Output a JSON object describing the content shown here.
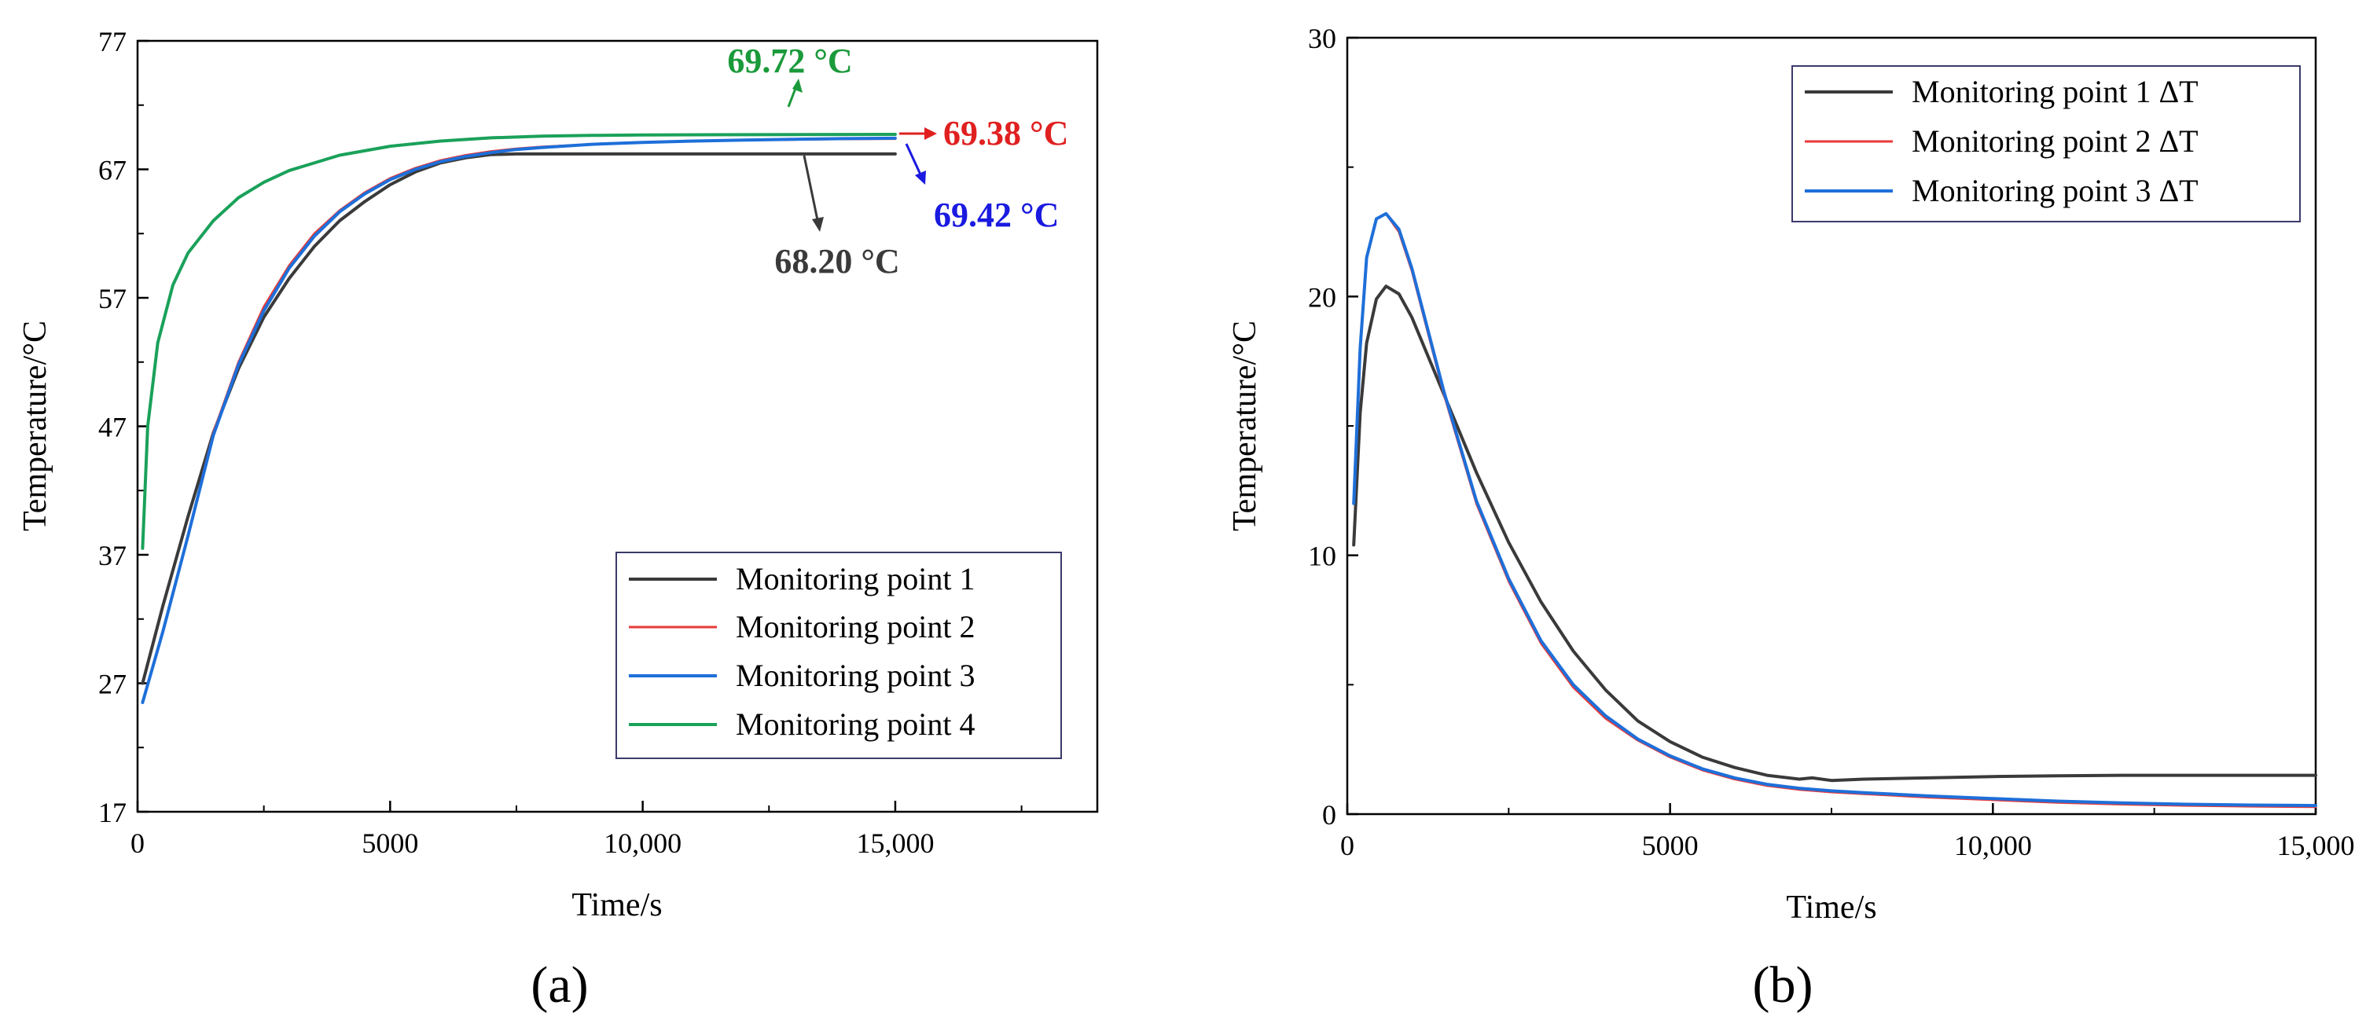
{
  "chart_data": [
    {
      "id": "a",
      "type": "line",
      "panel_label": "(a)",
      "xlabel": "Time/s",
      "ylabel": "Temperature/°C",
      "xlim": [
        0,
        19000
      ],
      "ylim": [
        17,
        77
      ],
      "xticks": [
        0,
        5000,
        10000,
        15000
      ],
      "xtick_labels": [
        "0",
        "5000",
        "10,000",
        "15,000"
      ],
      "yticks": [
        17,
        27,
        37,
        47,
        57,
        67,
        77
      ],
      "ytick_labels": [
        "17",
        "27",
        "37",
        "47",
        "57",
        "67",
        "77"
      ],
      "legend": "bottom-right",
      "series": [
        {
          "name": "Monitoring point 1",
          "color": "#3a3a3a",
          "x": [
            100,
            500,
            1000,
            1500,
            2000,
            2500,
            3000,
            3500,
            4000,
            4500,
            5000,
            5500,
            6000,
            6500,
            7000,
            7500,
            8000,
            9000,
            10000,
            11000,
            12000,
            13000,
            14000,
            15000
          ],
          "y": [
            27.0,
            33.0,
            40.0,
            46.5,
            51.5,
            55.5,
            58.5,
            61.0,
            63.0,
            64.5,
            65.8,
            66.8,
            67.5,
            67.9,
            68.15,
            68.2,
            68.2,
            68.2,
            68.2,
            68.2,
            68.2,
            68.2,
            68.2,
            68.2
          ]
        },
        {
          "name": "Monitoring point 2",
          "color": "#e83a3a",
          "x": [
            100,
            500,
            1000,
            1500,
            2000,
            2500,
            3000,
            3500,
            4000,
            4500,
            5000,
            5500,
            6000,
            6500,
            7000,
            7500,
            8000,
            9000,
            10000,
            11000,
            12000,
            13000,
            14000,
            15000
          ],
          "y": [
            25.5,
            31.0,
            38.5,
            46.5,
            52.0,
            56.3,
            59.5,
            62.0,
            63.8,
            65.2,
            66.3,
            67.1,
            67.7,
            68.1,
            68.4,
            68.6,
            68.75,
            68.95,
            69.1,
            69.2,
            69.27,
            69.32,
            69.36,
            69.38
          ]
        },
        {
          "name": "Monitoring point 3",
          "color": "#1e6fd9",
          "x": [
            100,
            500,
            1000,
            1500,
            2000,
            2500,
            3000,
            3500,
            4000,
            4500,
            5000,
            5500,
            6000,
            6500,
            7000,
            7500,
            8000,
            9000,
            10000,
            11000,
            12000,
            13000,
            14000,
            15000
          ],
          "y": [
            25.5,
            31.0,
            38.5,
            46.3,
            51.8,
            56.0,
            59.3,
            61.8,
            63.7,
            65.1,
            66.2,
            67.0,
            67.6,
            68.0,
            68.3,
            68.55,
            68.7,
            68.95,
            69.1,
            69.2,
            69.28,
            69.34,
            69.39,
            69.42
          ]
        },
        {
          "name": "Monitoring point 4",
          "color": "#1aa15a",
          "x": [
            100,
            200,
            400,
            700,
            1000,
            1500,
            2000,
            2500,
            3000,
            4000,
            5000,
            6000,
            7000,
            8000,
            9000,
            10000,
            12000,
            15000
          ],
          "y": [
            37.5,
            47.0,
            53.5,
            58.0,
            60.5,
            63.0,
            64.8,
            66.0,
            66.9,
            68.1,
            68.8,
            69.2,
            69.45,
            69.58,
            69.64,
            69.68,
            69.7,
            69.72
          ]
        }
      ],
      "annotations": [
        {
          "text": "69.72 °C",
          "color": "#1a9a3a",
          "x": 13000,
          "y": 69.6
        },
        {
          "text": "69.38 °C",
          "color": "#e02020",
          "x": 15000,
          "y": 69.38
        },
        {
          "text": "69.42 °C",
          "color": "#1a1ae0",
          "x": 15000,
          "y": 69.0
        },
        {
          "text": "68.20 °C",
          "color": "#3a3a3a",
          "x": 13300,
          "y": 68.0
        }
      ]
    },
    {
      "id": "b",
      "type": "line",
      "panel_label": "(b)",
      "xlabel": "Time/s",
      "ylabel": "Temperature/°C",
      "xlim": [
        0,
        15000
      ],
      "ylim": [
        0,
        30
      ],
      "xticks": [
        0,
        5000,
        10000,
        15000
      ],
      "xtick_labels": [
        "0",
        "5000",
        "10,000",
        "15,000"
      ],
      "yticks": [
        0,
        10,
        20,
        30
      ],
      "ytick_labels": [
        "0",
        "10",
        "20",
        "30"
      ],
      "legend": "top-right",
      "series": [
        {
          "name": "Monitoring point 1 ΔT",
          "color": "#3a3a3a",
          "x": [
            100,
            200,
            300,
            450,
            600,
            800,
            1000,
            1500,
            2000,
            2500,
            3000,
            3500,
            4000,
            4500,
            5000,
            5500,
            6000,
            6500,
            7000,
            7200,
            7500,
            8000,
            9000,
            10000,
            11000,
            12000,
            13000,
            14000,
            15000
          ],
          "y": [
            10.4,
            15.5,
            18.2,
            19.9,
            20.4,
            20.1,
            19.2,
            16.2,
            13.2,
            10.5,
            8.2,
            6.3,
            4.8,
            3.6,
            2.8,
            2.2,
            1.8,
            1.5,
            1.35,
            1.4,
            1.3,
            1.35,
            1.4,
            1.45,
            1.48,
            1.5,
            1.5,
            1.5,
            1.5
          ]
        },
        {
          "name": "Monitoring point 2 ΔT",
          "color": "#e83a3a",
          "x": [
            100,
            200,
            300,
            450,
            600,
            800,
            1000,
            1500,
            2000,
            2500,
            3000,
            3500,
            4000,
            4500,
            5000,
            5500,
            6000,
            6500,
            7000,
            7500,
            8000,
            9000,
            10000,
            11000,
            12000,
            13000,
            14000,
            15000
          ],
          "y": [
            12.0,
            18.0,
            21.5,
            23.0,
            23.2,
            22.5,
            21.0,
            16.2,
            12.0,
            9.0,
            6.6,
            4.9,
            3.7,
            2.85,
            2.2,
            1.7,
            1.35,
            1.1,
            0.95,
            0.85,
            0.78,
            0.65,
            0.55,
            0.45,
            0.38,
            0.33,
            0.3,
            0.28
          ]
        },
        {
          "name": "Monitoring point 3 ΔT",
          "color": "#1e6fd9",
          "x": [
            100,
            200,
            300,
            450,
            600,
            800,
            1000,
            1500,
            2000,
            2500,
            3000,
            3500,
            4000,
            4500,
            5000,
            5500,
            6000,
            6500,
            7000,
            7500,
            8000,
            9000,
            10000,
            11000,
            12000,
            13000,
            14000,
            15000
          ],
          "y": [
            12.0,
            18.0,
            21.5,
            23.0,
            23.2,
            22.6,
            21.1,
            16.3,
            12.1,
            9.1,
            6.7,
            5.0,
            3.8,
            2.9,
            2.25,
            1.75,
            1.4,
            1.15,
            1.0,
            0.9,
            0.83,
            0.7,
            0.6,
            0.5,
            0.43,
            0.38,
            0.35,
            0.33
          ]
        }
      ],
      "annotations": []
    }
  ]
}
